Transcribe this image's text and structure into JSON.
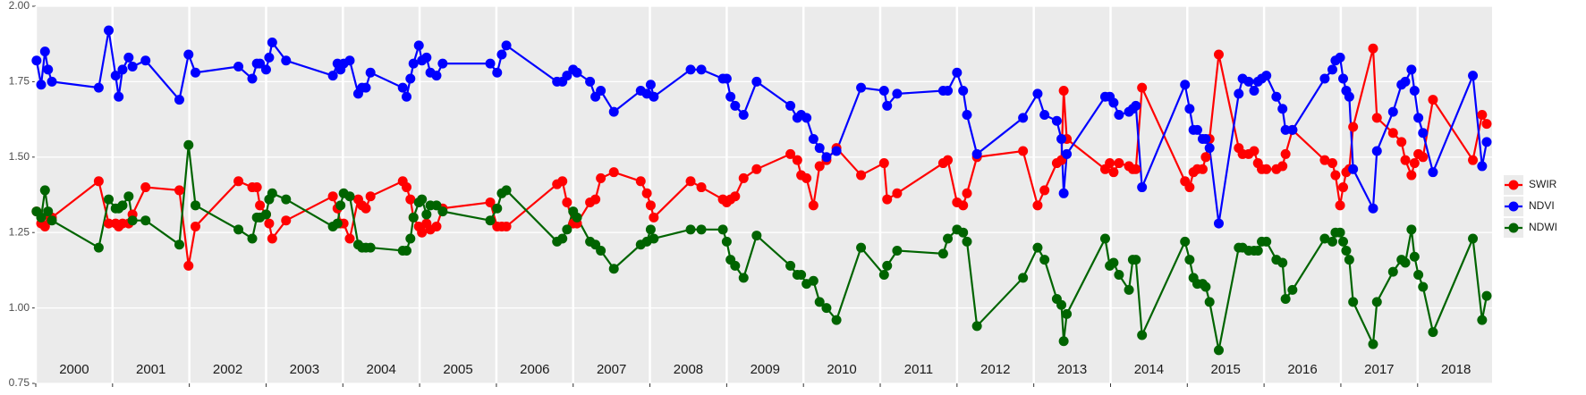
{
  "chart_data": {
    "type": "line",
    "x": [
      2000.01,
      2000.07,
      2000.12,
      2000.16,
      2000.21,
      2000.82,
      2000.95,
      2001.04,
      2001.08,
      2001.13,
      2001.21,
      2001.26,
      2001.43,
      2001.87,
      2001.99,
      2002.08,
      2002.64,
      2002.82,
      2002.88,
      2002.92,
      2003.0,
      2003.04,
      2003.08,
      2003.26,
      2003.87,
      2003.93,
      2003.97,
      2004.01,
      2004.09,
      2004.2,
      2004.25,
      2004.3,
      2004.36,
      2004.78,
      2004.83,
      2004.88,
      2004.92,
      2004.99,
      2005.03,
      2005.09,
      2005.14,
      2005.22,
      2005.3,
      2005.92,
      2006.01,
      2006.07,
      2006.13,
      2006.79,
      2006.86,
      2006.92,
      2007.0,
      2007.05,
      2007.22,
      2007.29,
      2007.36,
      2007.53,
      2007.88,
      2007.96,
      2008.01,
      2008.05,
      2008.53,
      2008.67,
      2008.95,
      2009.0,
      2009.05,
      2009.11,
      2009.22,
      2009.39,
      2009.83,
      2009.92,
      2009.97,
      2010.04,
      2010.13,
      2010.21,
      2010.3,
      2010.43,
      2010.75,
      2011.05,
      2011.09,
      2011.22,
      2011.82,
      2011.88,
      2012.0,
      2012.08,
      2012.13,
      2012.26,
      2012.86,
      2013.05,
      2013.14,
      2013.3,
      2013.36,
      2013.39,
      2013.43,
      2013.93,
      2013.99,
      2014.04,
      2014.11,
      2014.24,
      2014.29,
      2014.33,
      2014.41,
      2014.97,
      2015.03,
      2015.08,
      2015.13,
      2015.2,
      2015.24,
      2015.29,
      2015.41,
      2015.67,
      2015.72,
      2015.8,
      2015.87,
      2015.92,
      2015.97,
      2016.03,
      2016.16,
      2016.24,
      2016.28,
      2016.37,
      2016.79,
      2016.89,
      2016.93,
      2016.99,
      2017.03,
      2017.07,
      2017.11,
      2017.16,
      2017.42,
      2017.47,
      2017.68,
      2017.79,
      2017.84,
      2017.92,
      2017.96,
      2018.01,
      2018.07,
      2018.2,
      2018.72,
      2018.84,
      2018.9
    ],
    "series": [
      {
        "name": "SWIR",
        "color": "#ff0000",
        "values": [
          1.32,
          1.28,
          1.27,
          1.31,
          1.3,
          1.42,
          1.28,
          1.28,
          1.27,
          1.28,
          1.28,
          1.31,
          1.4,
          1.39,
          1.14,
          1.27,
          1.42,
          1.4,
          1.4,
          1.34,
          1.31,
          1.28,
          1.23,
          1.29,
          1.37,
          1.33,
          1.28,
          1.28,
          1.23,
          1.36,
          1.34,
          1.33,
          1.37,
          1.42,
          1.4,
          1.36,
          1.3,
          1.27,
          1.25,
          1.28,
          1.26,
          1.27,
          1.33,
          1.35,
          1.27,
          1.27,
          1.27,
          1.41,
          1.42,
          1.35,
          1.28,
          1.28,
          1.35,
          1.36,
          1.43,
          1.45,
          1.42,
          1.38,
          1.34,
          1.3,
          1.42,
          1.4,
          1.36,
          1.35,
          1.36,
          1.37,
          1.43,
          1.46,
          1.51,
          1.49,
          1.44,
          1.43,
          1.34,
          1.47,
          1.49,
          1.53,
          1.44,
          1.48,
          1.36,
          1.38,
          1.48,
          1.49,
          1.35,
          1.34,
          1.38,
          1.5,
          1.52,
          1.34,
          1.39,
          1.48,
          1.49,
          1.72,
          1.56,
          1.46,
          1.48,
          1.45,
          1.48,
          1.47,
          1.46,
          1.46,
          1.73,
          1.42,
          1.4,
          1.45,
          1.46,
          1.46,
          1.5,
          1.56,
          1.84,
          1.53,
          1.51,
          1.51,
          1.52,
          1.48,
          1.46,
          1.46,
          1.46,
          1.47,
          1.51,
          1.59,
          1.49,
          1.48,
          1.44,
          1.34,
          1.4,
          1.45,
          1.46,
          1.6,
          1.86,
          1.63,
          1.58,
          1.55,
          1.49,
          1.44,
          1.48,
          1.51,
          1.5,
          1.69,
          1.49,
          1.64,
          1.61
        ]
      },
      {
        "name": "NDVI",
        "color": "#0000ff",
        "values": [
          1.82,
          1.74,
          1.85,
          1.79,
          1.75,
          1.73,
          1.92,
          1.77,
          1.7,
          1.79,
          1.83,
          1.8,
          1.82,
          1.69,
          1.84,
          1.78,
          1.8,
          1.76,
          1.81,
          1.81,
          1.79,
          1.83,
          1.88,
          1.82,
          1.77,
          1.81,
          1.79,
          1.81,
          1.82,
          1.71,
          1.73,
          1.73,
          1.78,
          1.73,
          1.7,
          1.76,
          1.81,
          1.87,
          1.82,
          1.83,
          1.78,
          1.77,
          1.81,
          1.81,
          1.78,
          1.84,
          1.87,
          1.75,
          1.75,
          1.77,
          1.79,
          1.78,
          1.75,
          1.7,
          1.72,
          1.65,
          1.72,
          1.71,
          1.74,
          1.7,
          1.79,
          1.79,
          1.76,
          1.76,
          1.7,
          1.67,
          1.64,
          1.75,
          1.67,
          1.63,
          1.64,
          1.63,
          1.56,
          1.53,
          1.5,
          1.52,
          1.73,
          1.72,
          1.67,
          1.71,
          1.72,
          1.72,
          1.78,
          1.72,
          1.64,
          1.51,
          1.63,
          1.71,
          1.64,
          1.62,
          1.56,
          1.38,
          1.51,
          1.7,
          1.7,
          1.68,
          1.64,
          1.65,
          1.66,
          1.67,
          1.4,
          1.74,
          1.66,
          1.59,
          1.59,
          1.56,
          1.56,
          1.53,
          1.28,
          1.71,
          1.76,
          1.75,
          1.72,
          1.75,
          1.76,
          1.77,
          1.7,
          1.66,
          1.59,
          1.59,
          1.76,
          1.79,
          1.82,
          1.83,
          1.76,
          1.72,
          1.7,
          1.46,
          1.33,
          1.52,
          1.65,
          1.74,
          1.75,
          1.79,
          1.72,
          1.63,
          1.58,
          1.45,
          1.77,
          1.47,
          1.55
        ]
      },
      {
        "name": "NDWI",
        "color": "#006400",
        "values": [
          1.32,
          1.3,
          1.39,
          1.32,
          1.29,
          1.2,
          1.36,
          1.33,
          1.33,
          1.34,
          1.37,
          1.29,
          1.29,
          1.21,
          1.54,
          1.34,
          1.26,
          1.23,
          1.3,
          1.3,
          1.31,
          1.36,
          1.38,
          1.36,
          1.27,
          1.28,
          1.34,
          1.38,
          1.37,
          1.21,
          1.2,
          1.2,
          1.2,
          1.19,
          1.19,
          1.23,
          1.3,
          1.35,
          1.36,
          1.31,
          1.34,
          1.34,
          1.32,
          1.29,
          1.33,
          1.38,
          1.39,
          1.22,
          1.23,
          1.26,
          1.32,
          1.3,
          1.22,
          1.21,
          1.19,
          1.13,
          1.21,
          1.22,
          1.26,
          1.23,
          1.26,
          1.26,
          1.26,
          1.22,
          1.16,
          1.14,
          1.1,
          1.24,
          1.14,
          1.11,
          1.11,
          1.08,
          1.09,
          1.02,
          1.0,
          0.96,
          1.2,
          1.11,
          1.14,
          1.19,
          1.18,
          1.23,
          1.26,
          1.25,
          1.22,
          0.94,
          1.1,
          1.2,
          1.16,
          1.03,
          1.01,
          0.89,
          0.98,
          1.23,
          1.14,
          1.15,
          1.11,
          1.06,
          1.16,
          1.16,
          0.91,
          1.22,
          1.16,
          1.1,
          1.08,
          1.08,
          1.07,
          1.02,
          0.86,
          1.2,
          1.2,
          1.19,
          1.19,
          1.19,
          1.22,
          1.22,
          1.16,
          1.15,
          1.03,
          1.06,
          1.23,
          1.22,
          1.25,
          1.25,
          1.22,
          1.19,
          1.16,
          1.02,
          0.88,
          1.02,
          1.12,
          1.16,
          1.15,
          1.26,
          1.17,
          1.11,
          1.07,
          0.92,
          1.23,
          0.96,
          1.04
        ]
      }
    ],
    "xlim": [
      2000,
      2018.97
    ],
    "xticks": [
      2000,
      2001,
      2002,
      2003,
      2004,
      2005,
      2006,
      2007,
      2008,
      2009,
      2010,
      2011,
      2012,
      2013,
      2014,
      2015,
      2016,
      2017,
      2018
    ],
    "ylim": [
      0.75,
      2.0
    ],
    "yticks": [
      {
        "value": 0.75,
        "label": "0.75"
      },
      {
        "value": 1.0,
        "label": "1.00"
      },
      {
        "value": 1.25,
        "label": "1.25"
      },
      {
        "value": 1.5,
        "label": "1.50"
      },
      {
        "value": 1.75,
        "label": "1.75"
      },
      {
        "value": 2.0,
        "label": "2.00"
      }
    ],
    "grid": true,
    "legend": "right"
  }
}
